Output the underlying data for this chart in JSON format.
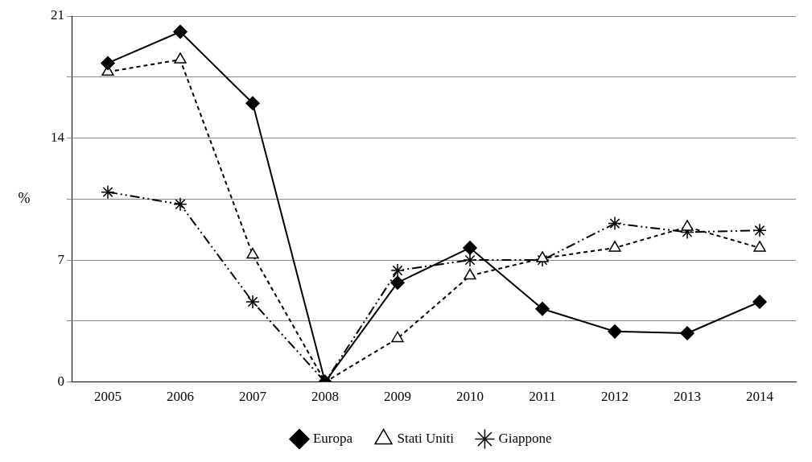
{
  "chart_data": {
    "type": "line",
    "ylabel": "%",
    "categories": [
      "2005",
      "2006",
      "2007",
      "2008",
      "2009",
      "2010",
      "2011",
      "2012",
      "2013",
      "2014"
    ],
    "series": [
      {
        "name": "Europa",
        "color": "#000000",
        "marker": "diamond",
        "line_style": "solid",
        "values": [
          18.3,
          20.1,
          16.0,
          0,
          5.7,
          7.7,
          4.2,
          2.9,
          2.8,
          4.6
        ]
      },
      {
        "name": "Stati Uniti",
        "color": "#000000",
        "marker": "triangle",
        "line_style": "dashed",
        "values": [
          17.8,
          18.5,
          7.3,
          0,
          2.5,
          6.1,
          7.1,
          7.7,
          8.9,
          7.7
        ]
      },
      {
        "name": "Giappone",
        "color": "#000000",
        "marker": "cross",
        "line_style": "dotted",
        "values": [
          10.9,
          10.2,
          4.6,
          0,
          6.4,
          7.0,
          7.0,
          9.1,
          8.6,
          8.7
        ]
      }
    ],
    "ylim": [
      0,
      21
    ],
    "yticks": [
      0,
      {
        "value": 3.5,
        "label": null
      },
      7,
      {
        "value": 10.5,
        "label": null
      },
      14,
      {
        "value": 17.5,
        "label": null
      },
      21
    ],
    "grid": "y",
    "legend": "bottom"
  }
}
